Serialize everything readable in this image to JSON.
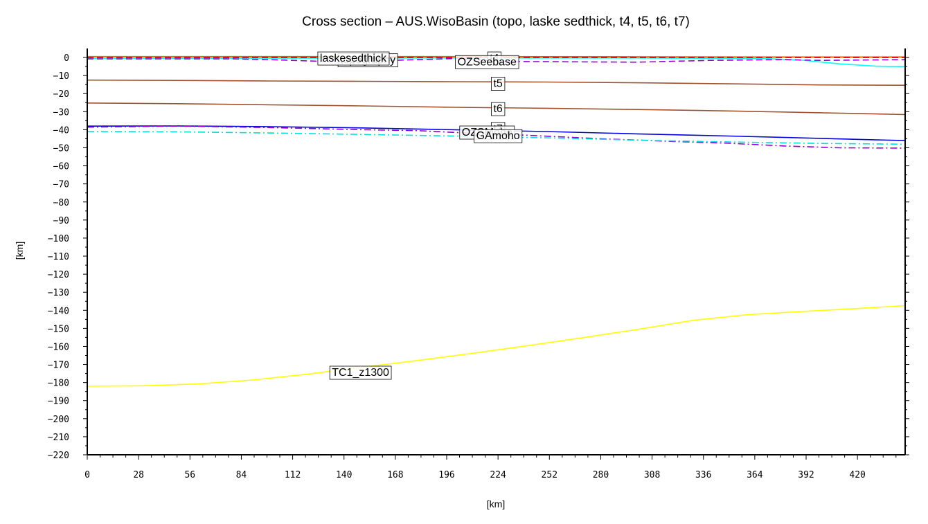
{
  "chart_data": {
    "type": "line",
    "title": "Cross section – AUS.WisoBasin (topo, laske sedthick, t4, t5, t6, t7)",
    "xlabel": "[km]",
    "ylabel": "[km]",
    "xlim": [
      0,
      446
    ],
    "ylim": [
      -220,
      5
    ],
    "xticks": [
      0,
      28,
      56,
      84,
      112,
      140,
      168,
      196,
      224,
      252,
      280,
      308,
      336,
      364,
      392,
      420
    ],
    "yticks": [
      0,
      -10,
      -20,
      -30,
      -40,
      -50,
      -60,
      -70,
      -80,
      -90,
      -100,
      -110,
      -120,
      -130,
      -140,
      -150,
      -160,
      -170,
      -180,
      -190,
      -200,
      -210,
      -220
    ],
    "xtick_labels": [
      "0",
      "28",
      "56",
      "84",
      "112",
      "140",
      "168",
      "196",
      "224",
      "252",
      "280",
      "308",
      "336",
      "364",
      "392",
      "420"
    ],
    "ytick_labels": [
      "0",
      "−10",
      "−20",
      "−30",
      "−40",
      "−50",
      "−60",
      "−70",
      "−80",
      "−90",
      "−100",
      "−110",
      "−120",
      "−130",
      "−140",
      "−150",
      "−160",
      "−170",
      "−180",
      "−190",
      "−200",
      "−210",
      "−220"
    ],
    "series": [
      {
        "name": "topography",
        "color": "#00c000",
        "dash": "solid",
        "label_x": 153,
        "label_y": -1,
        "x": [
          0,
          100,
          200,
          300,
          380,
          446
        ],
        "y": [
          0.5,
          0.5,
          0.5,
          0.4,
          0.3,
          0.3
        ]
      },
      {
        "name": "laskesedthick",
        "color": "#00ffff",
        "dash": "solid",
        "label_x": 145,
        "label_y": 0,
        "x": [
          0,
          100,
          200,
          300,
          370,
          390,
          410,
          430,
          446
        ],
        "y": [
          -0.6,
          -0.4,
          -0.3,
          -0.3,
          -0.6,
          -1.5,
          -3.5,
          -4.8,
          -5.0
        ]
      },
      {
        "name": "t4",
        "color": "#ff8000",
        "dash": "solid",
        "label_x": 222,
        "label_y": 0,
        "x": [
          0,
          100,
          200,
          300,
          446
        ],
        "y": [
          0.3,
          0.2,
          0.2,
          0.1,
          0.1
        ]
      },
      {
        "name": "",
        "color": "#e00000",
        "dash": "dashed",
        "label_x": null,
        "label_y": null,
        "x": [
          0,
          100,
          200,
          300,
          446
        ],
        "y": [
          0,
          0,
          0,
          0,
          0
        ]
      },
      {
        "name": "",
        "color": "#9400d3",
        "dash": "dashed",
        "label_x": null,
        "label_y": null,
        "x": [
          0,
          80,
          100,
          130,
          160,
          180,
          200,
          230,
          300,
          340,
          380,
          400,
          446
        ],
        "y": [
          -0.8,
          -0.8,
          -1.2,
          -2.2,
          -1.8,
          -1.2,
          -0.6,
          -2.2,
          -2.6,
          -1.6,
          -1.2,
          -1.6,
          -1.2
        ]
      },
      {
        "name": "OZSeebase",
        "color": "#e00000",
        "dash": "dashed",
        "label_x": 218,
        "label_y": -2,
        "x": [
          0,
          446
        ],
        "y": [
          0,
          0
        ]
      },
      {
        "name": "t5",
        "color": "#a0522d",
        "dash": "solid",
        "label_x": 224,
        "label_y": -14,
        "x": [
          0,
          50,
          100,
          150,
          200,
          250,
          300,
          350,
          400,
          446
        ],
        "y": [
          -12.5,
          -12.7,
          -13.0,
          -13.2,
          -13.4,
          -13.6,
          -14.0,
          -14.6,
          -15.2,
          -15.4
        ]
      },
      {
        "name": "t6",
        "color": "#a0522d",
        "dash": "solid",
        "label_x": 224,
        "label_y": -28,
        "x": [
          0,
          50,
          100,
          150,
          200,
          250,
          300,
          350,
          400,
          446
        ],
        "y": [
          -25.2,
          -25.6,
          -26.2,
          -26.8,
          -27.6,
          -28.1,
          -28.8,
          -29.6,
          -30.6,
          -31.6
        ]
      },
      {
        "name": "t7",
        "color": "#0000e0",
        "dash": "solid",
        "label_x": 224,
        "label_y": -39,
        "x": [
          0,
          50,
          100,
          150,
          200,
          250,
          300,
          350,
          400,
          446
        ],
        "y": [
          -38.0,
          -37.9,
          -38.3,
          -39.0,
          -40.0,
          -41.0,
          -42.3,
          -43.5,
          -44.8,
          -46.0
        ]
      },
      {
        "name": "OZSMoho",
        "color": "#9400d3",
        "dash": "dashdot",
        "label_x": 218,
        "label_y": -41,
        "x": [
          0,
          50,
          100,
          150,
          180,
          200,
          230,
          280,
          320,
          350,
          380,
          410,
          446
        ],
        "y": [
          -38.6,
          -38.0,
          -38.8,
          -40.0,
          -40.5,
          -41.5,
          -42.6,
          -45.0,
          -46.5,
          -47.5,
          -49.0,
          -50.0,
          -50.2
        ]
      },
      {
        "name": "GAmoho",
        "color": "#00e0e0",
        "dash": "dashdot",
        "label_x": 224,
        "label_y": -43,
        "x": [
          0,
          50,
          100,
          150,
          200,
          250,
          300,
          350,
          400,
          446
        ],
        "y": [
          -41.0,
          -41.2,
          -41.8,
          -42.6,
          -43.5,
          -44.5,
          -45.8,
          -46.8,
          -47.6,
          -48.0
        ]
      },
      {
        "name": "TC1_z1300",
        "color": "#ffff00",
        "dash": "solid",
        "label_x": 149,
        "label_y": -174,
        "x": [
          0,
          30,
          60,
          90,
          120,
          150,
          180,
          210,
          240,
          270,
          300,
          330,
          360,
          390,
          420,
          446
        ],
        "y": [
          -182.0,
          -181.8,
          -180.8,
          -178.6,
          -175.4,
          -171.5,
          -167.8,
          -163.8,
          -159.6,
          -155.2,
          -150.6,
          -145.6,
          -142.4,
          -140.6,
          -139.0,
          -137.4
        ]
      }
    ],
    "grid": false,
    "legend": "none"
  }
}
